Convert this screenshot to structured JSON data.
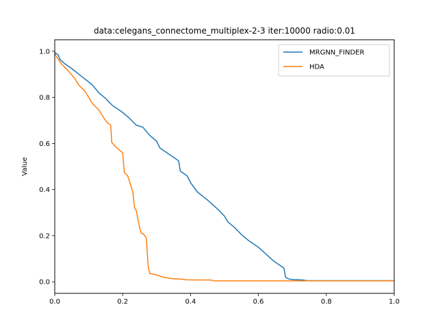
{
  "chart_data": {
    "type": "line",
    "title": "data:celegans_connectome_multiplex-2-3 iter:10000 radio:0.01",
    "xlabel": "",
    "ylabel": "Value",
    "xlim": [
      0.0,
      1.0
    ],
    "ylim": [
      -0.05,
      1.05
    ],
    "xticks": [
      0.0,
      0.2,
      0.4,
      0.6,
      0.8,
      1.0
    ],
    "xtick_labels": [
      "0.0",
      "0.2",
      "0.4",
      "0.6",
      "0.8",
      "1.0"
    ],
    "yticks": [
      0.0,
      0.2,
      0.4,
      0.6,
      0.8,
      1.0
    ],
    "ytick_labels": [
      "0.0",
      "0.2",
      "0.4",
      "0.6",
      "0.8",
      "1.0"
    ],
    "grid": false,
    "legend": "top-right",
    "series": [
      {
        "name": "MRGNN_FINDER",
        "color": "#1f77b4",
        "x": [
          0.0,
          0.01,
          0.015,
          0.03,
          0.05,
          0.08,
          0.11,
          0.13,
          0.15,
          0.17,
          0.2,
          0.22,
          0.24,
          0.26,
          0.28,
          0.3,
          0.31,
          0.33,
          0.35,
          0.365,
          0.37,
          0.39,
          0.4,
          0.42,
          0.45,
          0.48,
          0.5,
          0.51,
          0.53,
          0.55,
          0.57,
          0.6,
          0.63,
          0.645,
          0.665,
          0.675,
          0.68,
          0.685,
          0.69,
          0.7,
          0.73,
          0.74,
          0.75,
          1.0
        ],
        "y": [
          0.995,
          0.985,
          0.965,
          0.945,
          0.925,
          0.89,
          0.855,
          0.82,
          0.795,
          0.765,
          0.735,
          0.71,
          0.68,
          0.67,
          0.635,
          0.61,
          0.58,
          0.56,
          0.54,
          0.525,
          0.48,
          0.46,
          0.43,
          0.39,
          0.355,
          0.315,
          0.285,
          0.26,
          0.235,
          0.205,
          0.18,
          0.15,
          0.11,
          0.09,
          0.07,
          0.06,
          0.02,
          0.015,
          0.012,
          0.01,
          0.008,
          0.006,
          0.005,
          0.005
        ]
      },
      {
        "name": "HDA",
        "color": "#ff7f0e",
        "x": [
          0.0,
          0.01,
          0.02,
          0.04,
          0.06,
          0.07,
          0.09,
          0.11,
          0.13,
          0.145,
          0.155,
          0.165,
          0.168,
          0.18,
          0.2,
          0.205,
          0.215,
          0.23,
          0.235,
          0.24,
          0.25,
          0.255,
          0.26,
          0.27,
          0.275,
          0.28,
          0.285,
          0.3,
          0.32,
          0.35,
          0.37,
          0.39,
          0.42,
          0.46,
          0.47,
          0.5,
          0.6,
          0.8,
          1.0
        ],
        "y": [
          0.99,
          0.965,
          0.945,
          0.915,
          0.88,
          0.855,
          0.825,
          0.775,
          0.745,
          0.71,
          0.69,
          0.68,
          0.605,
          0.585,
          0.56,
          0.475,
          0.46,
          0.39,
          0.32,
          0.31,
          0.235,
          0.21,
          0.21,
          0.19,
          0.07,
          0.035,
          0.035,
          0.03,
          0.02,
          0.013,
          0.012,
          0.009,
          0.008,
          0.008,
          0.004,
          0.004,
          0.004,
          0.004,
          0.004
        ]
      }
    ]
  }
}
